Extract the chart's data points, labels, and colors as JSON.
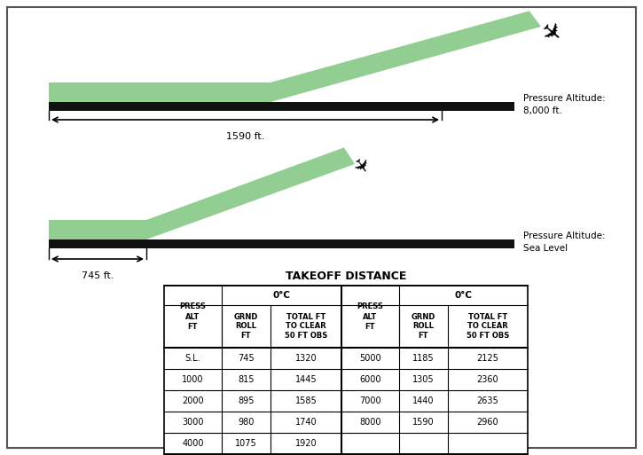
{
  "green_color": "#86C986",
  "runway_color": "#111111",
  "title": "TAKEOFF DISTANCE",
  "pressure_alt_8000": "Pressure Altitude:\n8,000 ft.",
  "pressure_alt_sl": "Pressure Altitude:\nSea Level",
  "arrow_top_label": "1590 ft.",
  "arrow_bot_label": "745 ft.",
  "data_left": [
    [
      "S.L.",
      "745",
      "1320"
    ],
    [
      "1000",
      "815",
      "1445"
    ],
    [
      "2000",
      "895",
      "1585"
    ],
    [
      "3000",
      "980",
      "1740"
    ],
    [
      "4000",
      "1075",
      "1920"
    ]
  ],
  "data_right": [
    [
      "5000",
      "1185",
      "2125"
    ],
    [
      "6000",
      "1305",
      "2360"
    ],
    [
      "7000",
      "1440",
      "2635"
    ],
    [
      "8000",
      "1590",
      "2960"
    ]
  ],
  "figsize": [
    7.25,
    5.13
  ],
  "dpi": 100
}
